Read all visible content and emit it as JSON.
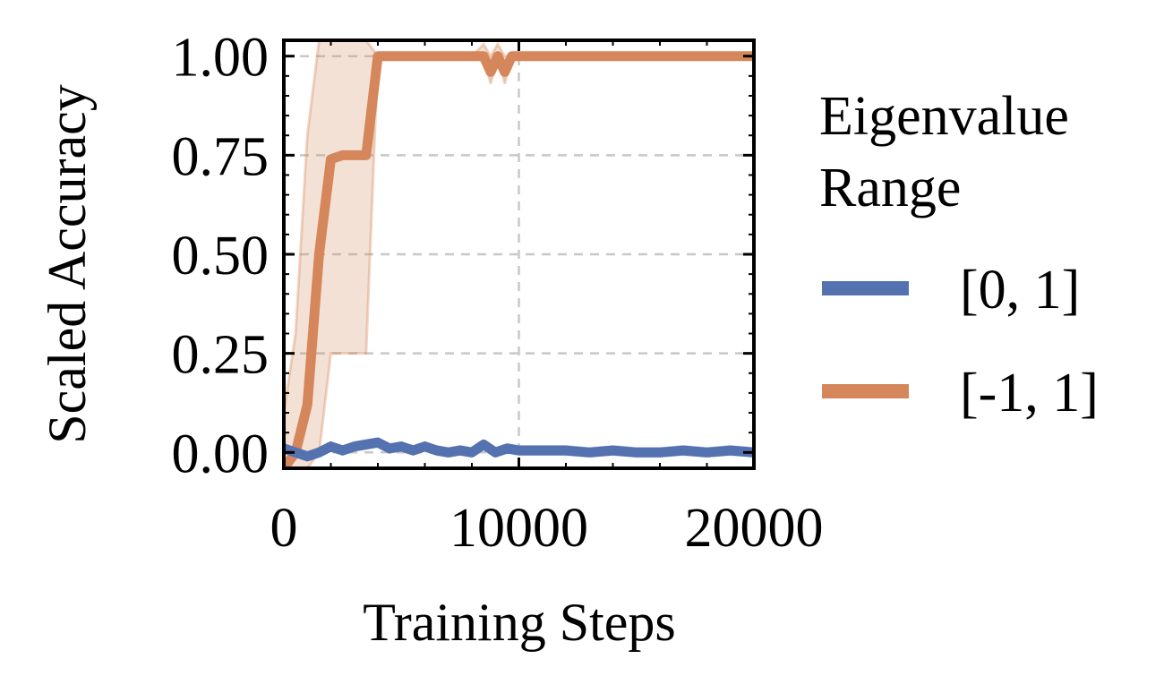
{
  "chart_data": {
    "type": "line",
    "title": "",
    "xlabel": "Training Steps",
    "ylabel": "Scaled Accuracy",
    "xlim": [
      0,
      20000
    ],
    "ylim": [
      -0.04,
      1.04
    ],
    "xticks": [
      0,
      10000,
      20000
    ],
    "xtick_labels": [
      "0",
      "10000",
      "20000"
    ],
    "yticks": [
      0,
      0.25,
      0.5,
      0.75,
      1.0
    ],
    "ytick_labels": [
      "0.00",
      "0.25",
      "0.50",
      "0.75",
      "1.00"
    ],
    "grid": true,
    "legend": {
      "title": "Eigenvalue Range",
      "placement": "right"
    },
    "series": [
      {
        "name": "[0, 1]",
        "color": "#5471b0",
        "x": [
          0,
          500,
          1000,
          1500,
          2000,
          2500,
          3000,
          3500,
          4000,
          4500,
          5000,
          5500,
          6000,
          6500,
          7000,
          7500,
          8000,
          8500,
          9000,
          9500,
          10000,
          11000,
          12000,
          13000,
          14000,
          15000,
          16000,
          17000,
          18000,
          19000,
          20000
        ],
        "y": [
          0.01,
          0.0,
          -0.01,
          0.0,
          0.015,
          0.005,
          0.015,
          0.02,
          0.025,
          0.01,
          0.015,
          0.005,
          0.015,
          0.005,
          0.0,
          0.005,
          0.0,
          0.02,
          0.0,
          0.01,
          0.005,
          0.005,
          0.005,
          0.0,
          0.005,
          0.0,
          0.0,
          0.005,
          0.0,
          0.005,
          0.0
        ],
        "band_lower": [
          0.0,
          -0.01,
          -0.02,
          -0.01,
          0.005,
          -0.005,
          0.005,
          0.01,
          0.015,
          0.0,
          0.005,
          -0.005,
          0.005,
          -0.005,
          -0.01,
          -0.005,
          -0.01,
          0.01,
          -0.01,
          0.0,
          -0.005,
          -0.005,
          -0.005,
          -0.01,
          -0.005,
          -0.01,
          -0.01,
          -0.005,
          -0.01,
          -0.005,
          -0.01
        ],
        "band_upper": [
          0.02,
          0.01,
          0.0,
          0.01,
          0.025,
          0.015,
          0.025,
          0.03,
          0.035,
          0.02,
          0.025,
          0.015,
          0.025,
          0.015,
          0.01,
          0.015,
          0.01,
          0.03,
          0.01,
          0.02,
          0.015,
          0.015,
          0.015,
          0.01,
          0.015,
          0.01,
          0.01,
          0.015,
          0.01,
          0.015,
          0.01
        ]
      },
      {
        "name": "[-1, 1]",
        "color": "#d5865a",
        "x": [
          0,
          500,
          1000,
          1500,
          2000,
          2500,
          3000,
          3500,
          4000,
          5000,
          6000,
          7000,
          8000,
          8500,
          8800,
          9100,
          9400,
          9700,
          10000,
          12000,
          13000,
          14000,
          16000,
          18000,
          20000
        ],
        "y": [
          -0.04,
          0.0,
          0.12,
          0.5,
          0.74,
          0.75,
          0.75,
          0.75,
          1.0,
          1.0,
          1.0,
          1.0,
          1.0,
          1.0,
          0.96,
          1.0,
          0.96,
          1.0,
          1.0,
          1.0,
          1.0,
          1.0,
          1.0,
          1.0,
          1.0
        ],
        "band_lower": [
          -0.04,
          -0.04,
          -0.04,
          0.0,
          0.25,
          0.25,
          0.25,
          0.25,
          1.0,
          1.0,
          1.0,
          1.0,
          1.0,
          1.0,
          0.93,
          1.0,
          0.93,
          1.0,
          1.0,
          1.0,
          1.0,
          1.0,
          1.0,
          1.0,
          1.0
        ],
        "band_upper": [
          0.1,
          0.3,
          0.8,
          1.04,
          1.04,
          1.04,
          1.04,
          1.04,
          1.0,
          1.0,
          1.0,
          1.0,
          1.0,
          1.03,
          1.0,
          1.03,
          1.0,
          1.0,
          1.0,
          1.0,
          1.0,
          1.0,
          1.0,
          1.0,
          1.0
        ]
      }
    ]
  }
}
